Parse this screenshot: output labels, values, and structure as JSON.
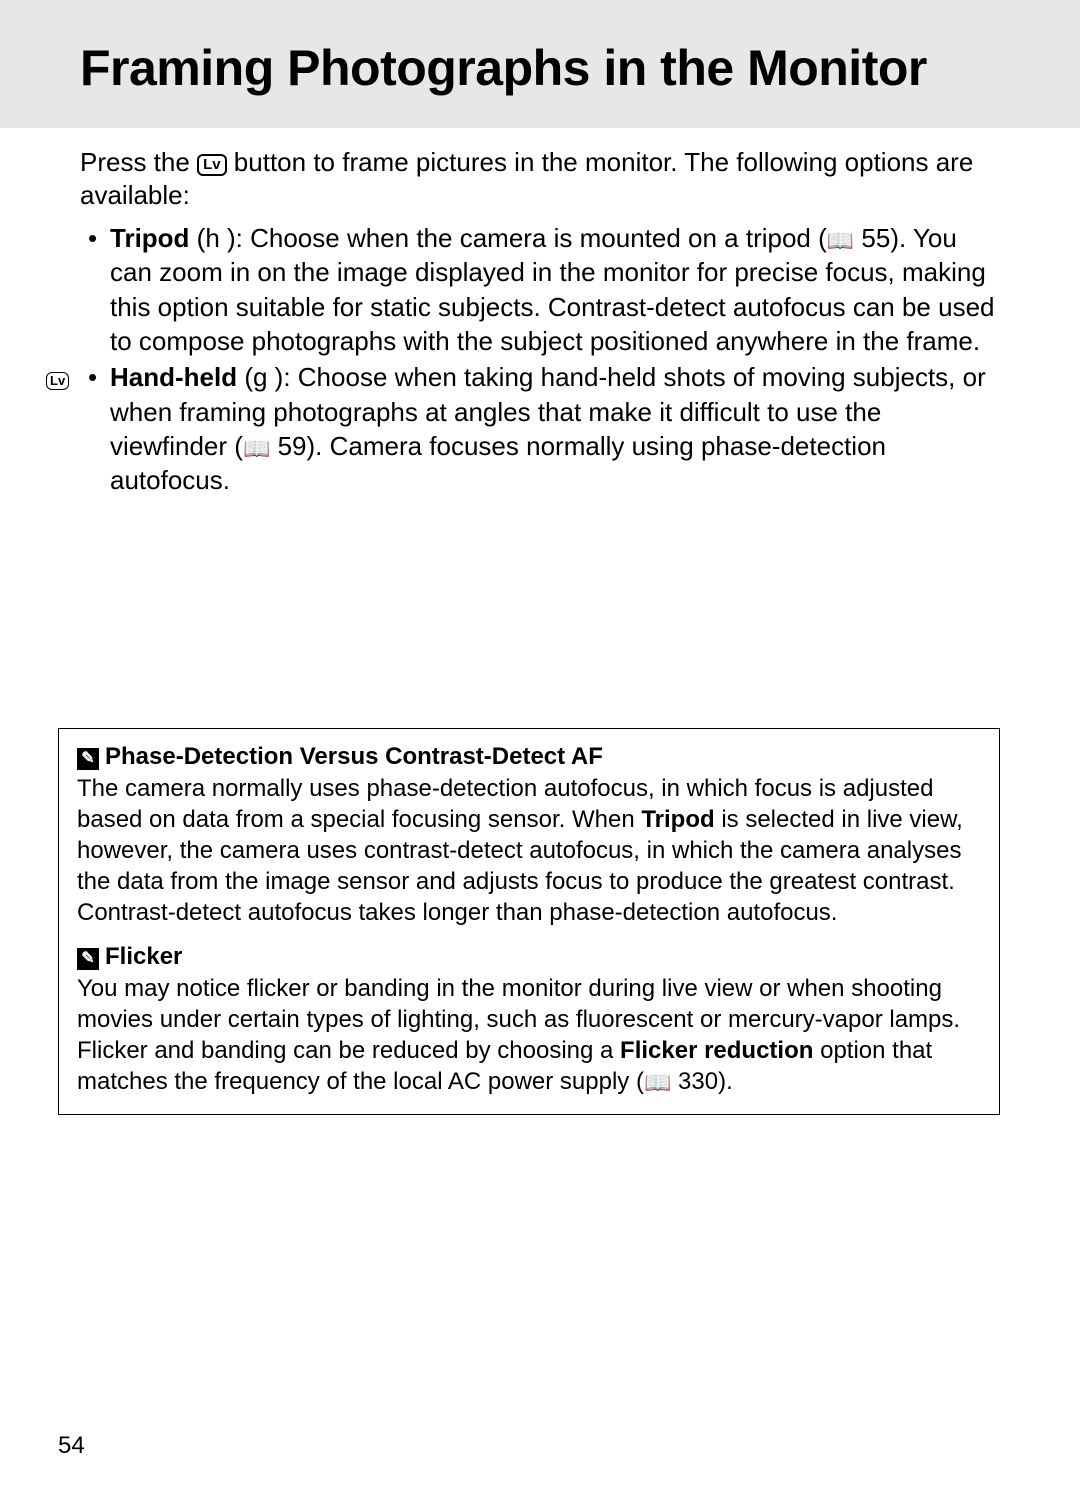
{
  "header": {
    "title": "Framing Photographs in the Monitor"
  },
  "intro": {
    "pre": "Press the ",
    "lv_icon_text": "Lv",
    "post": " button to frame pictures in the monitor. The following options are available:"
  },
  "side_tab": {
    "icon_text": "Lv"
  },
  "options": {
    "tripod": {
      "label": "Tripod",
      "mode": " (h ): ",
      "text1": "Choose when the camera is mounted on a tripod (",
      "book": "📖",
      "ref1": " 55).  You can zoom in on the image displayed in the monitor for precise focus, making this option suitable for static subjects. Contrast-detect autofocus can be used to compose photographs with the subject positioned anywhere in the frame."
    },
    "handheld": {
      "label": "Hand-held",
      "mode": " (g ): ",
      "text1": "Choose when taking hand-held shots of moving subjects, or when framing photographs at angles that make it difficult to use the viewfinder (",
      "book": "📖",
      "ref1": " 59).  Camera focuses normally using phase-detection autofocus."
    }
  },
  "notes": {
    "af": {
      "heading": "Phase-Detection Versus Contrast-Detect AF",
      "body_pre": "The camera normally uses phase-detection autofocus, in which focus is adjusted based on data from a special focusing sensor.  When ",
      "body_bold": "Tripod",
      "body_post": " is selected in live view, however, the camera uses contrast-detect autofocus, in which the camera analyses the data from the image sensor and adjusts focus to produce the greatest contrast.  Contrast-detect autofocus takes longer than phase-detection autofocus."
    },
    "flicker": {
      "heading": "Flicker",
      "body_pre": "You may notice flicker or banding in the monitor during live view or when shooting movies under certain types of lighting, such as fluorescent or mercury-vapor lamps.  Flicker and banding can be reduced by choosing a ",
      "body_bold": "Flicker reduction",
      "body_mid": " option that matches the frequency of the local AC power supply (",
      "book": "📖",
      "ref": " 330)."
    }
  },
  "icons": {
    "pencil": "✎"
  },
  "page_number": "54"
}
